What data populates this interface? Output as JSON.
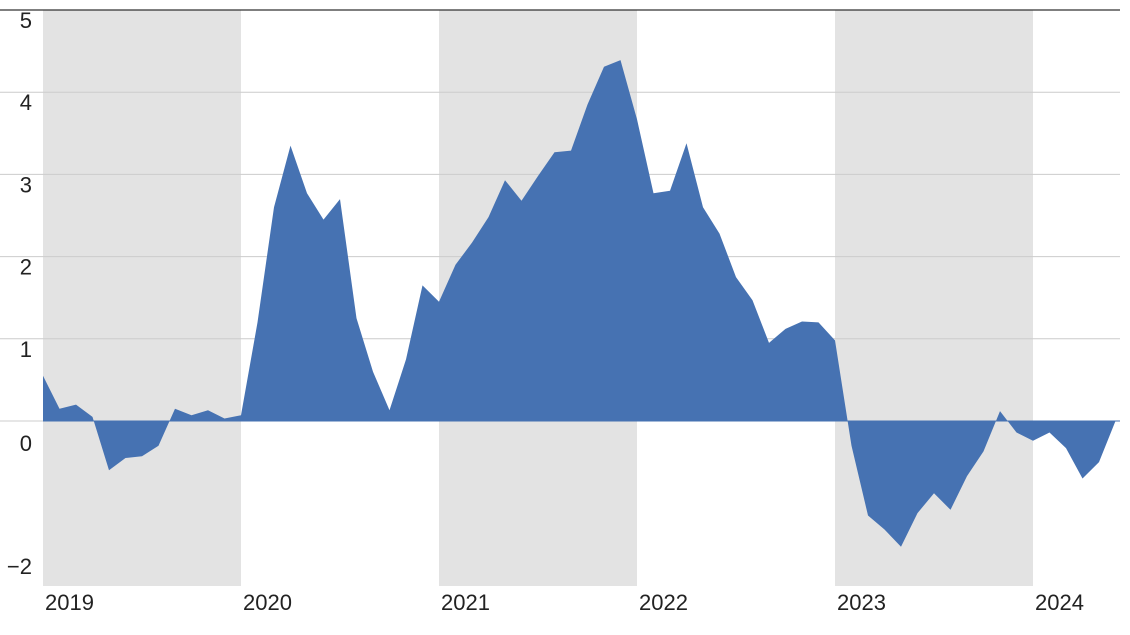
{
  "colors": {
    "area_fill": "#4672b2",
    "band_fill": "#e3e3e3",
    "grid": "#cccccc",
    "axis": "#333333",
    "text": "#222222"
  },
  "chart_data": {
    "type": "area",
    "title": "",
    "xlabel": "",
    "ylabel": "",
    "ylim": [
      -2,
      5
    ],
    "xlim": [
      "2019-01-01",
      "2024-06-01"
    ],
    "y_ticks": [
      {
        "value": 5,
        "label": "5"
      },
      {
        "value": 4,
        "label": "4"
      },
      {
        "value": 3,
        "label": "3"
      },
      {
        "value": 2,
        "label": "2"
      },
      {
        "value": 1,
        "label": "1"
      },
      {
        "value": 0,
        "label": "0"
      },
      {
        "value": -2,
        "label": "−2"
      }
    ],
    "x_ticks": [
      {
        "value": "2019-01-01",
        "label": "2019"
      },
      {
        "value": "2020-01-01",
        "label": "2020"
      },
      {
        "value": "2021-01-01",
        "label": "2021"
      },
      {
        "value": "2022-01-01",
        "label": "2022"
      },
      {
        "value": "2023-01-01",
        "label": "2023"
      },
      {
        "value": "2024-01-01",
        "label": "2024"
      }
    ],
    "shaded_bands": [
      [
        "2019-01-01",
        "2020-01-01"
      ],
      [
        "2021-01-01",
        "2022-01-01"
      ],
      [
        "2023-01-01",
        "2024-01-01"
      ]
    ],
    "grid": true,
    "series": [
      {
        "x": [
          "2019-01",
          "2019-02",
          "2019-03",
          "2019-04",
          "2019-05",
          "2019-06",
          "2019-07",
          "2019-08",
          "2019-09",
          "2019-10",
          "2019-11",
          "2019-12",
          "2020-01",
          "2020-02",
          "2020-03",
          "2020-04",
          "2020-05",
          "2020-06",
          "2020-07",
          "2020-08",
          "2020-09",
          "2020-10",
          "2020-11",
          "2020-12",
          "2021-01",
          "2021-02",
          "2021-03",
          "2021-04",
          "2021-05",
          "2021-06",
          "2021-07",
          "2021-08",
          "2021-09",
          "2021-10",
          "2021-11",
          "2021-12",
          "2022-01",
          "2022-02",
          "2022-03",
          "2022-04",
          "2022-05",
          "2022-06",
          "2022-07",
          "2022-08",
          "2022-09",
          "2022-10",
          "2022-11",
          "2022-12",
          "2023-01",
          "2023-02",
          "2023-03",
          "2023-04",
          "2023-05",
          "2023-06",
          "2023-07",
          "2023-08",
          "2023-09",
          "2023-10",
          "2023-11",
          "2023-12",
          "2024-01",
          "2024-02",
          "2024-03",
          "2024-04",
          "2024-05",
          "2024-06"
        ],
        "values": [
          0.55,
          0.15,
          0.2,
          0.05,
          -0.6,
          -0.45,
          -0.43,
          -0.3,
          0.15,
          0.07,
          0.13,
          0.03,
          0.07,
          1.2,
          2.6,
          3.35,
          2.77,
          2.45,
          2.7,
          1.25,
          0.6,
          0.13,
          0.75,
          1.65,
          1.45,
          1.9,
          2.17,
          2.48,
          2.93,
          2.68,
          2.98,
          3.27,
          3.29,
          3.85,
          4.31,
          4.39,
          3.67,
          2.77,
          2.8,
          3.38,
          2.6,
          2.28,
          1.75,
          1.47,
          0.95,
          1.12,
          1.21,
          1.2,
          0.98,
          -0.3,
          -1.15,
          -1.32,
          -1.53,
          -1.12,
          -0.88,
          -1.08,
          -0.67,
          -0.37,
          0.12,
          -0.14,
          -0.24,
          -0.14,
          -0.33,
          -0.7,
          -0.5,
          0.0
        ]
      }
    ]
  }
}
